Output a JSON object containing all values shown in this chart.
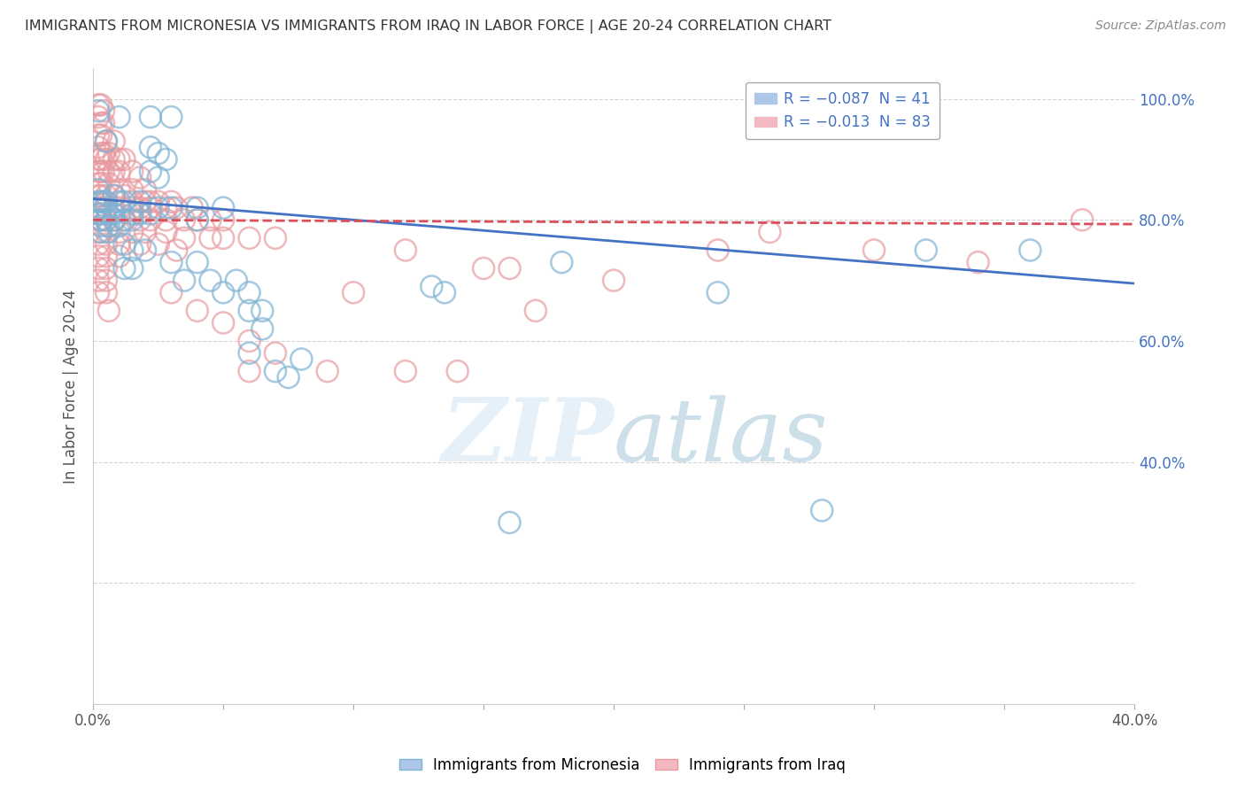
{
  "title": "IMMIGRANTS FROM MICRONESIA VS IMMIGRANTS FROM IRAQ IN LABOR FORCE | AGE 20-24 CORRELATION CHART",
  "source": "Source: ZipAtlas.com",
  "ylabel": "In Labor Force | Age 20-24",
  "xlim": [
    0.0,
    0.4
  ],
  "ylim": [
    0.0,
    1.05
  ],
  "x_tick_pos": [
    0.0,
    0.05,
    0.1,
    0.15,
    0.2,
    0.25,
    0.3,
    0.35,
    0.4
  ],
  "x_tick_labels": [
    "0.0%",
    "",
    "",
    "",
    "",
    "",
    "",
    "",
    "40.0%"
  ],
  "y_tick_pos": [
    0.0,
    0.2,
    0.4,
    0.6,
    0.8,
    1.0
  ],
  "y_tick_labels": [
    "",
    "",
    "40.0%",
    "60.0%",
    "80.0%",
    "100.0%"
  ],
  "background_color": "#ffffff",
  "grid_color": "#d0d0d0",
  "watermark": "ZIPatlas",
  "micronesia_color": "#7fb3d3",
  "iraq_color": "#e89aa0",
  "micronesia_trend": [
    0.0,
    0.835,
    0.4,
    0.695
  ],
  "iraq_trend": [
    0.0,
    0.8,
    0.4,
    0.793
  ],
  "micronesia_points": [
    [
      0.002,
      0.98
    ],
    [
      0.01,
      0.97
    ],
    [
      0.022,
      0.97
    ],
    [
      0.03,
      0.97
    ],
    [
      0.005,
      0.93
    ],
    [
      0.022,
      0.92
    ],
    [
      0.025,
      0.91
    ],
    [
      0.028,
      0.9
    ],
    [
      0.022,
      0.88
    ],
    [
      0.025,
      0.87
    ],
    [
      0.002,
      0.85
    ],
    [
      0.008,
      0.84
    ],
    [
      0.002,
      0.83
    ],
    [
      0.003,
      0.83
    ],
    [
      0.004,
      0.83
    ],
    [
      0.005,
      0.83
    ],
    [
      0.01,
      0.83
    ],
    [
      0.012,
      0.83
    ],
    [
      0.018,
      0.83
    ],
    [
      0.025,
      0.82
    ],
    [
      0.03,
      0.82
    ],
    [
      0.04,
      0.82
    ],
    [
      0.05,
      0.82
    ],
    [
      0.002,
      0.81
    ],
    [
      0.003,
      0.81
    ],
    [
      0.006,
      0.81
    ],
    [
      0.008,
      0.81
    ],
    [
      0.015,
      0.81
    ],
    [
      0.018,
      0.81
    ],
    [
      0.022,
      0.81
    ],
    [
      0.003,
      0.8
    ],
    [
      0.005,
      0.8
    ],
    [
      0.008,
      0.8
    ],
    [
      0.012,
      0.8
    ],
    [
      0.015,
      0.8
    ],
    [
      0.04,
      0.8
    ],
    [
      0.003,
      0.79
    ],
    [
      0.006,
      0.79
    ],
    [
      0.01,
      0.79
    ],
    [
      0.003,
      0.78
    ],
    [
      0.006,
      0.78
    ],
    [
      0.012,
      0.76
    ],
    [
      0.015,
      0.75
    ],
    [
      0.02,
      0.75
    ],
    [
      0.03,
      0.73
    ],
    [
      0.04,
      0.73
    ],
    [
      0.012,
      0.72
    ],
    [
      0.015,
      0.72
    ],
    [
      0.035,
      0.7
    ],
    [
      0.045,
      0.7
    ],
    [
      0.055,
      0.7
    ],
    [
      0.05,
      0.68
    ],
    [
      0.06,
      0.68
    ],
    [
      0.06,
      0.65
    ],
    [
      0.065,
      0.65
    ],
    [
      0.065,
      0.62
    ],
    [
      0.06,
      0.58
    ],
    [
      0.08,
      0.57
    ],
    [
      0.07,
      0.55
    ],
    [
      0.075,
      0.54
    ],
    [
      0.13,
      0.69
    ],
    [
      0.135,
      0.68
    ],
    [
      0.18,
      0.73
    ],
    [
      0.24,
      0.68
    ],
    [
      0.32,
      0.75
    ],
    [
      0.36,
      0.75
    ],
    [
      0.28,
      0.32
    ],
    [
      0.16,
      0.3
    ]
  ],
  "iraq_points": [
    [
      0.002,
      0.99
    ],
    [
      0.003,
      0.99
    ],
    [
      0.004,
      0.98
    ],
    [
      0.002,
      0.97
    ],
    [
      0.003,
      0.96
    ],
    [
      0.004,
      0.96
    ],
    [
      0.002,
      0.94
    ],
    [
      0.003,
      0.94
    ],
    [
      0.005,
      0.93
    ],
    [
      0.008,
      0.93
    ],
    [
      0.002,
      0.92
    ],
    [
      0.003,
      0.91
    ],
    [
      0.004,
      0.91
    ],
    [
      0.006,
      0.91
    ],
    [
      0.002,
      0.9
    ],
    [
      0.003,
      0.9
    ],
    [
      0.005,
      0.9
    ],
    [
      0.008,
      0.9
    ],
    [
      0.01,
      0.9
    ],
    [
      0.012,
      0.9
    ],
    [
      0.002,
      0.88
    ],
    [
      0.003,
      0.88
    ],
    [
      0.004,
      0.88
    ],
    [
      0.006,
      0.88
    ],
    [
      0.008,
      0.88
    ],
    [
      0.01,
      0.88
    ],
    [
      0.015,
      0.88
    ],
    [
      0.018,
      0.87
    ],
    [
      0.002,
      0.86
    ],
    [
      0.003,
      0.86
    ],
    [
      0.006,
      0.86
    ],
    [
      0.01,
      0.85
    ],
    [
      0.015,
      0.85
    ],
    [
      0.02,
      0.85
    ],
    [
      0.002,
      0.84
    ],
    [
      0.003,
      0.84
    ],
    [
      0.005,
      0.84
    ],
    [
      0.008,
      0.84
    ],
    [
      0.012,
      0.84
    ],
    [
      0.015,
      0.83
    ],
    [
      0.02,
      0.83
    ],
    [
      0.022,
      0.83
    ],
    [
      0.025,
      0.83
    ],
    [
      0.03,
      0.83
    ],
    [
      0.002,
      0.82
    ],
    [
      0.003,
      0.82
    ],
    [
      0.005,
      0.82
    ],
    [
      0.008,
      0.82
    ],
    [
      0.01,
      0.82
    ],
    [
      0.015,
      0.82
    ],
    [
      0.018,
      0.82
    ],
    [
      0.022,
      0.82
    ],
    [
      0.028,
      0.82
    ],
    [
      0.032,
      0.82
    ],
    [
      0.038,
      0.82
    ],
    [
      0.002,
      0.8
    ],
    [
      0.003,
      0.8
    ],
    [
      0.005,
      0.8
    ],
    [
      0.008,
      0.8
    ],
    [
      0.012,
      0.8
    ],
    [
      0.018,
      0.8
    ],
    [
      0.022,
      0.8
    ],
    [
      0.028,
      0.8
    ],
    [
      0.035,
      0.8
    ],
    [
      0.04,
      0.8
    ],
    [
      0.045,
      0.8
    ],
    [
      0.05,
      0.8
    ],
    [
      0.002,
      0.78
    ],
    [
      0.005,
      0.78
    ],
    [
      0.01,
      0.78
    ],
    [
      0.015,
      0.78
    ],
    [
      0.02,
      0.78
    ],
    [
      0.028,
      0.78
    ],
    [
      0.035,
      0.77
    ],
    [
      0.045,
      0.77
    ],
    [
      0.05,
      0.77
    ],
    [
      0.06,
      0.77
    ],
    [
      0.07,
      0.77
    ],
    [
      0.002,
      0.76
    ],
    [
      0.005,
      0.76
    ],
    [
      0.01,
      0.76
    ],
    [
      0.018,
      0.76
    ],
    [
      0.025,
      0.76
    ],
    [
      0.032,
      0.75
    ],
    [
      0.002,
      0.74
    ],
    [
      0.005,
      0.74
    ],
    [
      0.01,
      0.74
    ],
    [
      0.002,
      0.72
    ],
    [
      0.005,
      0.72
    ],
    [
      0.002,
      0.7
    ],
    [
      0.005,
      0.7
    ],
    [
      0.002,
      0.68
    ],
    [
      0.005,
      0.68
    ],
    [
      0.006,
      0.65
    ],
    [
      0.03,
      0.68
    ],
    [
      0.04,
      0.65
    ],
    [
      0.05,
      0.63
    ],
    [
      0.06,
      0.6
    ],
    [
      0.06,
      0.55
    ],
    [
      0.07,
      0.58
    ],
    [
      0.09,
      0.55
    ],
    [
      0.1,
      0.68
    ],
    [
      0.12,
      0.55
    ],
    [
      0.12,
      0.75
    ],
    [
      0.15,
      0.72
    ],
    [
      0.16,
      0.72
    ],
    [
      0.17,
      0.65
    ],
    [
      0.2,
      0.7
    ],
    [
      0.24,
      0.75
    ],
    [
      0.26,
      0.78
    ],
    [
      0.3,
      0.75
    ],
    [
      0.34,
      0.73
    ],
    [
      0.38,
      0.8
    ],
    [
      0.14,
      0.55
    ]
  ]
}
